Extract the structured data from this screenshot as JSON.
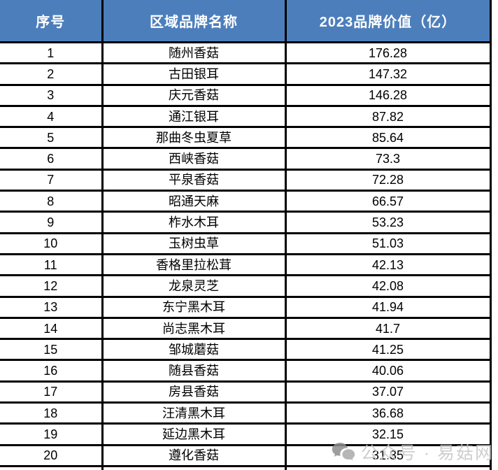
{
  "table": {
    "columns": [
      {
        "label": "序号"
      },
      {
        "label": "区域品牌名称"
      },
      {
        "label": "2023品牌价值（亿）"
      }
    ],
    "rows": [
      {
        "rank": "1",
        "name": "随州香菇",
        "value": "176.28"
      },
      {
        "rank": "2",
        "name": "古田银耳",
        "value": "147.32"
      },
      {
        "rank": "3",
        "name": "庆元香菇",
        "value": "146.28"
      },
      {
        "rank": "4",
        "name": "通江银耳",
        "value": "87.82"
      },
      {
        "rank": "5",
        "name": "那曲冬虫夏草",
        "value": "85.64"
      },
      {
        "rank": "6",
        "name": "西峡香菇",
        "value": "73.3"
      },
      {
        "rank": "7",
        "name": "平泉香菇",
        "value": "72.28"
      },
      {
        "rank": "8",
        "name": "昭通天麻",
        "value": "66.57"
      },
      {
        "rank": "9",
        "name": "柞水木耳",
        "value": "53.23"
      },
      {
        "rank": "10",
        "name": "玉树虫草",
        "value": "51.03"
      },
      {
        "rank": "11",
        "name": "香格里拉松茸",
        "value": "42.13"
      },
      {
        "rank": "12",
        "name": "龙泉灵芝",
        "value": "42.08"
      },
      {
        "rank": "13",
        "name": "东宁黑木耳",
        "value": "41.94"
      },
      {
        "rank": "14",
        "name": "尚志黑木耳",
        "value": "41.7"
      },
      {
        "rank": "15",
        "name": "邹城蘑菇",
        "value": "41.25"
      },
      {
        "rank": "16",
        "name": "随县香菇",
        "value": "40.06"
      },
      {
        "rank": "17",
        "name": "房县香菇",
        "value": "37.07"
      },
      {
        "rank": "18",
        "name": "汪清黑木耳",
        "value": "36.68"
      },
      {
        "rank": "19",
        "name": "延边黑木耳",
        "value": "32.15"
      },
      {
        "rank": "20",
        "name": "遵化香菇",
        "value": "31.35"
      }
    ]
  },
  "watermark": {
    "text": "公众号 · 易菇网",
    "icon": "wechat-bubbles-icon"
  },
  "colors": {
    "header_bg": "#4C7EBB",
    "header_text": "#FFFFFF",
    "border": "#000000",
    "row_bg": "#FFFFFF",
    "watermark_text": "#C6C6C6",
    "watermark_icon": "#8E8E8E"
  }
}
